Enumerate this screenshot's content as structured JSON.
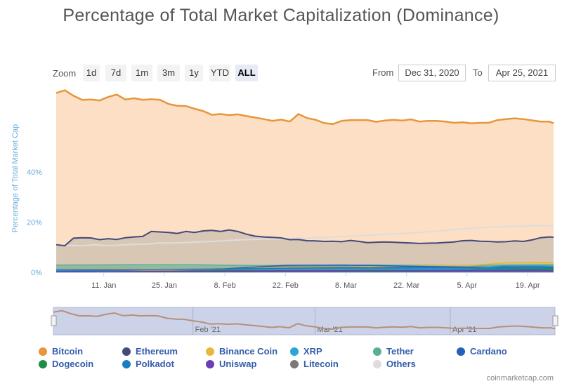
{
  "title": "Percentage of Total Market Capitalization (Dominance)",
  "zoom": {
    "label": "Zoom",
    "buttons": [
      "1d",
      "7d",
      "1m",
      "3m",
      "1y",
      "YTD",
      "ALL"
    ],
    "active": "ALL"
  },
  "range": {
    "from_label": "From",
    "from_value": "Dec 31, 2020",
    "to_label": "To",
    "to_value": "Apr 25, 2021"
  },
  "navigator_labels": [
    "Feb '21",
    "Mar '21",
    "Apr '21"
  ],
  "credit": "coinmarketcap.com",
  "chart_data": {
    "type": "area",
    "ylabel": "Percentage of Total Market Cap",
    "ytick_labels": [
      "0%",
      "20%",
      "40%"
    ],
    "yticks": [
      0,
      20,
      40
    ],
    "ylim": [
      0,
      75
    ],
    "xlim": [
      "2020-12-31",
      "2021-04-25"
    ],
    "xtick_labels": [
      "11. Jan",
      "25. Jan",
      "8. Feb",
      "22. Feb",
      "8. Mar",
      "22. Mar",
      "5. Apr",
      "19. Apr"
    ],
    "xtick_dates": [
      "2021-01-11",
      "2021-01-25",
      "2021-02-08",
      "2021-02-22",
      "2021-03-08",
      "2021-03-22",
      "2021-04-05",
      "2021-04-19"
    ],
    "legend_position": "bottom",
    "series": [
      {
        "name": "Bitcoin",
        "color": "#e8963a",
        "fill": "#fcdfc4",
        "points": [
          [
            "2020-12-31",
            71.5
          ],
          [
            "2021-01-02",
            72.6
          ],
          [
            "2021-01-04",
            70.4
          ],
          [
            "2021-01-06",
            68.8
          ],
          [
            "2021-01-08",
            68.9
          ],
          [
            "2021-01-10",
            68.5
          ],
          [
            "2021-01-12",
            69.9
          ],
          [
            "2021-01-14",
            70.9
          ],
          [
            "2021-01-16",
            68.9
          ],
          [
            "2021-01-18",
            69.4
          ],
          [
            "2021-01-20",
            68.8
          ],
          [
            "2021-01-22",
            69.0
          ],
          [
            "2021-01-24",
            68.8
          ],
          [
            "2021-01-26",
            67.1
          ],
          [
            "2021-01-28",
            66.4
          ],
          [
            "2021-01-30",
            66.3
          ],
          [
            "2021-02-01",
            65.2
          ],
          [
            "2021-02-03",
            64.3
          ],
          [
            "2021-02-05",
            62.8
          ],
          [
            "2021-02-07",
            63.1
          ],
          [
            "2021-02-09",
            62.7
          ],
          [
            "2021-02-11",
            63.0
          ],
          [
            "2021-02-13",
            62.3
          ],
          [
            "2021-02-15",
            61.7
          ],
          [
            "2021-02-17",
            61.1
          ],
          [
            "2021-02-19",
            60.4
          ],
          [
            "2021-02-21",
            60.9
          ],
          [
            "2021-02-23",
            60.1
          ],
          [
            "2021-02-25",
            63.1
          ],
          [
            "2021-02-27",
            61.5
          ],
          [
            "2021-03-01",
            60.8
          ],
          [
            "2021-03-03",
            59.5
          ],
          [
            "2021-03-05",
            59.1
          ],
          [
            "2021-03-07",
            60.4
          ],
          [
            "2021-03-09",
            60.7
          ],
          [
            "2021-03-11",
            60.7
          ],
          [
            "2021-03-13",
            60.7
          ],
          [
            "2021-03-15",
            60.0
          ],
          [
            "2021-03-17",
            60.5
          ],
          [
            "2021-03-19",
            60.8
          ],
          [
            "2021-03-21",
            60.5
          ],
          [
            "2021-03-23",
            61.0
          ],
          [
            "2021-03-25",
            60.1
          ],
          [
            "2021-03-27",
            60.4
          ],
          [
            "2021-03-29",
            60.4
          ],
          [
            "2021-03-31",
            60.1
          ],
          [
            "2021-04-02",
            59.6
          ],
          [
            "2021-04-04",
            59.8
          ],
          [
            "2021-04-06",
            59.4
          ],
          [
            "2021-04-08",
            59.6
          ],
          [
            "2021-04-10",
            59.6
          ],
          [
            "2021-04-12",
            60.7
          ],
          [
            "2021-04-14",
            61.1
          ],
          [
            "2021-04-16",
            61.4
          ],
          [
            "2021-04-18",
            61.1
          ],
          [
            "2021-04-20",
            60.6
          ],
          [
            "2021-04-22",
            60.1
          ],
          [
            "2021-04-24",
            60.1
          ],
          [
            "2021-04-25",
            59.4
          ]
        ]
      },
      {
        "name": "Others",
        "color": "#dddddd",
        "fill": "none",
        "points": [
          [
            "2020-12-31",
            10.6
          ],
          [
            "2021-01-03",
            10.7
          ],
          [
            "2021-01-06",
            10.6
          ],
          [
            "2021-01-09",
            11.0
          ],
          [
            "2021-01-12",
            10.6
          ],
          [
            "2021-01-15",
            10.9
          ],
          [
            "2021-01-18",
            11.1
          ],
          [
            "2021-01-21",
            11.3
          ],
          [
            "2021-01-24",
            11.7
          ],
          [
            "2021-01-27",
            11.7
          ],
          [
            "2021-01-30",
            11.9
          ],
          [
            "2021-02-02",
            12.1
          ],
          [
            "2021-02-05",
            12.3
          ],
          [
            "2021-02-08",
            12.6
          ],
          [
            "2021-02-11",
            12.9
          ],
          [
            "2021-02-14",
            13.1
          ],
          [
            "2021-02-17",
            13.2
          ],
          [
            "2021-02-20",
            13.3
          ],
          [
            "2021-02-23",
            13.4
          ],
          [
            "2021-02-26",
            13.6
          ],
          [
            "2021-03-01",
            13.8
          ],
          [
            "2021-03-04",
            14.0
          ],
          [
            "2021-03-07",
            14.3
          ],
          [
            "2021-03-10",
            14.5
          ],
          [
            "2021-03-13",
            14.7
          ],
          [
            "2021-03-16",
            15.0
          ],
          [
            "2021-03-19",
            15.3
          ],
          [
            "2021-03-22",
            15.6
          ],
          [
            "2021-03-25",
            15.9
          ],
          [
            "2021-03-28",
            16.3
          ],
          [
            "2021-03-31",
            16.7
          ],
          [
            "2021-04-03",
            17.2
          ],
          [
            "2021-04-06",
            17.5
          ],
          [
            "2021-04-09",
            17.9
          ],
          [
            "2021-04-12",
            18.1
          ],
          [
            "2021-04-15",
            18.3
          ],
          [
            "2021-04-18",
            18.4
          ],
          [
            "2021-04-21",
            18.7
          ],
          [
            "2021-04-25",
            18.4
          ]
        ]
      },
      {
        "name": "Ethereum",
        "color": "#434978",
        "fill": "#d8c7b4",
        "points": [
          [
            "2020-12-31",
            11.0
          ],
          [
            "2021-01-02",
            10.6
          ],
          [
            "2021-01-04",
            13.6
          ],
          [
            "2021-01-06",
            13.8
          ],
          [
            "2021-01-08",
            13.7
          ],
          [
            "2021-01-10",
            13.0
          ],
          [
            "2021-01-12",
            13.4
          ],
          [
            "2021-01-14",
            13.1
          ],
          [
            "2021-01-16",
            13.8
          ],
          [
            "2021-01-18",
            14.1
          ],
          [
            "2021-01-20",
            14.3
          ],
          [
            "2021-01-22",
            16.3
          ],
          [
            "2021-01-24",
            16.1
          ],
          [
            "2021-01-26",
            15.9
          ],
          [
            "2021-01-28",
            15.5
          ],
          [
            "2021-01-30",
            16.3
          ],
          [
            "2021-02-01",
            15.9
          ],
          [
            "2021-02-03",
            16.5
          ],
          [
            "2021-02-05",
            16.7
          ],
          [
            "2021-02-07",
            16.3
          ],
          [
            "2021-02-09",
            16.9
          ],
          [
            "2021-02-11",
            16.3
          ],
          [
            "2021-02-13",
            15.2
          ],
          [
            "2021-02-15",
            14.4
          ],
          [
            "2021-02-17",
            14.1
          ],
          [
            "2021-02-19",
            13.9
          ],
          [
            "2021-02-21",
            13.7
          ],
          [
            "2021-02-23",
            13.0
          ],
          [
            "2021-02-25",
            13.1
          ],
          [
            "2021-02-27",
            12.6
          ],
          [
            "2021-03-01",
            12.5
          ],
          [
            "2021-03-03",
            12.3
          ],
          [
            "2021-03-05",
            12.4
          ],
          [
            "2021-03-07",
            12.2
          ],
          [
            "2021-03-09",
            12.7
          ],
          [
            "2021-03-11",
            12.3
          ],
          [
            "2021-03-13",
            11.8
          ],
          [
            "2021-03-15",
            12.0
          ],
          [
            "2021-03-17",
            12.1
          ],
          [
            "2021-03-19",
            12.0
          ],
          [
            "2021-03-21",
            11.8
          ],
          [
            "2021-03-23",
            11.7
          ],
          [
            "2021-03-25",
            11.5
          ],
          [
            "2021-03-27",
            11.6
          ],
          [
            "2021-03-29",
            11.7
          ],
          [
            "2021-03-31",
            11.9
          ],
          [
            "2021-04-02",
            12.1
          ],
          [
            "2021-04-04",
            12.6
          ],
          [
            "2021-04-06",
            12.7
          ],
          [
            "2021-04-08",
            12.4
          ],
          [
            "2021-04-10",
            12.3
          ],
          [
            "2021-04-12",
            12.1
          ],
          [
            "2021-04-14",
            12.2
          ],
          [
            "2021-04-16",
            12.5
          ],
          [
            "2021-04-18",
            12.3
          ],
          [
            "2021-04-20",
            12.9
          ],
          [
            "2021-04-22",
            13.8
          ],
          [
            "2021-04-24",
            14.1
          ],
          [
            "2021-04-25",
            14.0
          ]
        ]
      },
      {
        "name": "Binance Coin",
        "color": "#e6b93a",
        "fill": "none",
        "points": [
          [
            "2020-12-31",
            0.6
          ],
          [
            "2021-01-20",
            0.7
          ],
          [
            "2021-02-10",
            1.4
          ],
          [
            "2021-02-20",
            2.0
          ],
          [
            "2021-03-05",
            2.2
          ],
          [
            "2021-03-20",
            2.4
          ],
          [
            "2021-04-05",
            2.7
          ],
          [
            "2021-04-15",
            3.9
          ],
          [
            "2021-04-25",
            4.0
          ]
        ]
      },
      {
        "name": "Tether",
        "color": "#5aae96",
        "fill": "none",
        "points": [
          [
            "2020-12-31",
            2.9
          ],
          [
            "2021-01-15",
            3.0
          ],
          [
            "2021-02-01",
            3.0
          ],
          [
            "2021-02-15",
            2.7
          ],
          [
            "2021-03-01",
            2.8
          ],
          [
            "2021-03-15",
            2.9
          ],
          [
            "2021-04-01",
            2.7
          ],
          [
            "2021-04-15",
            2.9
          ],
          [
            "2021-04-25",
            3.0
          ]
        ]
      },
      {
        "name": "XRP",
        "color": "#28a7d5",
        "fill": "none",
        "points": [
          [
            "2020-12-31",
            0.8
          ],
          [
            "2021-01-15",
            1.1
          ],
          [
            "2021-02-01",
            1.3
          ],
          [
            "2021-02-15",
            1.2
          ],
          [
            "2021-03-01",
            1.1
          ],
          [
            "2021-03-15",
            1.1
          ],
          [
            "2021-04-05",
            1.5
          ],
          [
            "2021-04-15",
            2.8
          ],
          [
            "2021-04-25",
            2.5
          ]
        ]
      },
      {
        "name": "Cardano",
        "color": "#2560b8",
        "fill": "none",
        "points": [
          [
            "2020-12-31",
            0.6
          ],
          [
            "2021-01-20",
            0.9
          ],
          [
            "2021-02-08",
            1.4
          ],
          [
            "2021-02-22",
            2.8
          ],
          [
            "2021-03-08",
            2.9
          ],
          [
            "2021-03-22",
            2.4
          ],
          [
            "2021-04-05",
            2.1
          ],
          [
            "2021-04-19",
            2.2
          ],
          [
            "2021-04-25",
            2.1
          ]
        ]
      },
      {
        "name": "Polkadot",
        "color": "#1a7dc2",
        "fill": "none",
        "points": [
          [
            "2020-12-31",
            0.5
          ],
          [
            "2021-01-20",
            0.9
          ],
          [
            "2021-02-15",
            1.5
          ],
          [
            "2021-03-08",
            2.0
          ],
          [
            "2021-03-22",
            1.8
          ],
          [
            "2021-04-10",
            1.7
          ],
          [
            "2021-04-25",
            1.6
          ]
        ]
      },
      {
        "name": "Litecoin",
        "color": "#7a7a7a",
        "fill": "none",
        "points": [
          [
            "2020-12-31",
            1.2
          ],
          [
            "2021-01-20",
            1.1
          ],
          [
            "2021-02-15",
            0.9
          ],
          [
            "2021-03-15",
            0.7
          ],
          [
            "2021-04-25",
            0.6
          ]
        ]
      },
      {
        "name": "Dogecoin",
        "color": "#1d8e48",
        "fill": "none",
        "points": [
          [
            "2020-12-31",
            0.1
          ],
          [
            "2021-01-28",
            0.4
          ],
          [
            "2021-02-08",
            0.7
          ],
          [
            "2021-03-15",
            0.4
          ],
          [
            "2021-04-15",
            1.0
          ],
          [
            "2021-04-25",
            1.4
          ]
        ]
      },
      {
        "name": "Uniswap",
        "color": "#6a3fb5",
        "fill": "none",
        "points": [
          [
            "2020-12-31",
            0.2
          ],
          [
            "2021-02-15",
            0.5
          ],
          [
            "2021-03-15",
            0.7
          ],
          [
            "2021-04-25",
            0.7
          ]
        ]
      }
    ],
    "legend": [
      {
        "name": "Bitcoin",
        "color": "#e8963a"
      },
      {
        "name": "Ethereum",
        "color": "#434978"
      },
      {
        "name": "Binance Coin",
        "color": "#e6b93a"
      },
      {
        "name": "XRP",
        "color": "#28a7d5"
      },
      {
        "name": "Tether",
        "color": "#5aae96"
      },
      {
        "name": "Cardano",
        "color": "#2560b8"
      },
      {
        "name": "Dogecoin",
        "color": "#1d8e48"
      },
      {
        "name": "Polkadot",
        "color": "#1a7dc2"
      },
      {
        "name": "Uniswap",
        "color": "#6a3fb5"
      },
      {
        "name": "Litecoin",
        "color": "#7a7a7a"
      },
      {
        "name": "Others",
        "color": "#dddddd"
      }
    ]
  }
}
